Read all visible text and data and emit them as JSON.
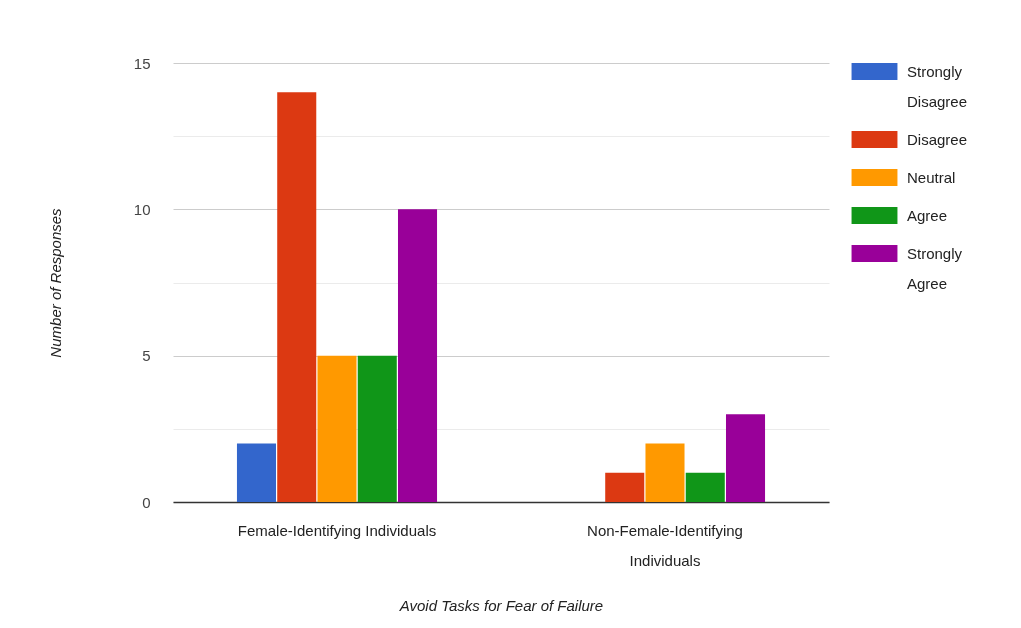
{
  "chart_data": {
    "type": "bar",
    "xlabel": "Avoid Tasks for Fear of Failure",
    "ylabel": "Number of Responses",
    "categories": [
      "Female-Identifying Individuals",
      "Non-Female-Identifying Individuals"
    ],
    "series": [
      {
        "name": "Strongly Disagree",
        "color": "#3366cc",
        "values": [
          2,
          0
        ]
      },
      {
        "name": "Disagree",
        "color": "#dc3912",
        "values": [
          14,
          1
        ]
      },
      {
        "name": "Neutral",
        "color": "#ff9900",
        "values": [
          5,
          2
        ]
      },
      {
        "name": "Agree",
        "color": "#109618",
        "values": [
          5,
          1
        ]
      },
      {
        "name": "Strongly Agree",
        "color": "#990099",
        "values": [
          10,
          3
        ]
      }
    ],
    "ylim": [
      0,
      15
    ],
    "yticks": [
      0,
      {
        "value": 2.5,
        "label": null
      },
      5,
      {
        "value": 7.5,
        "label": null
      },
      10,
      {
        "value": 12.5,
        "label": null
      },
      15
    ],
    "grid": "y",
    "legend": "right"
  }
}
